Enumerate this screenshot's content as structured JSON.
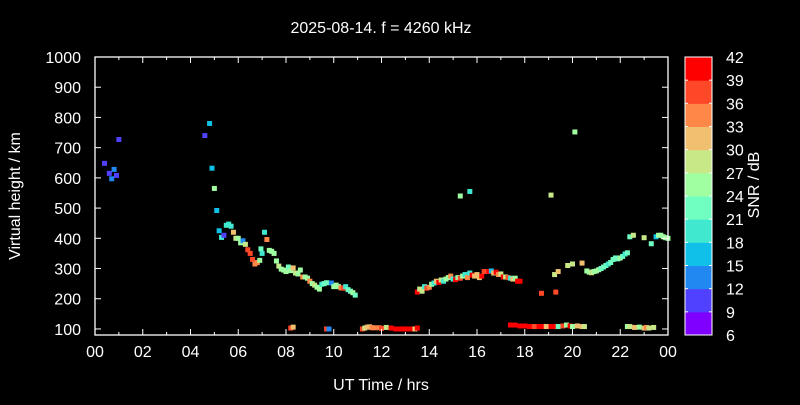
{
  "chart_data": {
    "type": "scatter",
    "title": "2025-08-14. f = 4260 kHz",
    "xlabel": "UT Time / hrs",
    "ylabel": "Virtual height / km",
    "xlim": [
      0,
      24
    ],
    "ylim": [
      80,
      1000
    ],
    "x_ticks": [
      "00",
      "02",
      "04",
      "06",
      "08",
      "10",
      "12",
      "14",
      "16",
      "18",
      "20",
      "22",
      "00"
    ],
    "y_ticks": [
      100,
      200,
      300,
      400,
      500,
      600,
      700,
      800,
      900,
      1000
    ],
    "grid": false,
    "colorbar": {
      "label": "SNR / dB",
      "ticks": [
        6,
        9,
        12,
        15,
        18,
        21,
        24,
        27,
        30,
        33,
        36,
        39,
        42
      ],
      "colors": [
        "#7f00ff",
        "#5040ff",
        "#2088f0",
        "#10c0e8",
        "#40e8d0",
        "#70ffc0",
        "#a0ffa0",
        "#c8e888",
        "#f0c070",
        "#ff8848",
        "#ff4828",
        "#ff0000"
      ],
      "placement": "right"
    },
    "points_columns": [
      "time_h",
      "height_km",
      "snr_db"
    ],
    "points": [
      [
        0.4,
        648,
        11
      ],
      [
        0.6,
        615,
        11
      ],
      [
        0.7,
        597,
        13
      ],
      [
        0.8,
        628,
        13
      ],
      [
        0.9,
        608,
        11
      ],
      [
        1.0,
        727,
        10
      ],
      [
        4.6,
        740,
        10
      ],
      [
        4.8,
        780,
        16
      ],
      [
        4.9,
        632,
        16
      ],
      [
        5.0,
        565,
        25
      ],
      [
        5.1,
        492,
        17
      ],
      [
        5.2,
        425,
        17
      ],
      [
        5.3,
        403,
        18
      ],
      [
        5.4,
        410,
        10
      ],
      [
        5.5,
        443,
        19
      ],
      [
        5.6,
        447,
        20
      ],
      [
        5.7,
        440,
        18
      ],
      [
        5.8,
        420,
        32
      ],
      [
        5.9,
        400,
        27
      ],
      [
        6.0,
        400,
        25
      ],
      [
        6.1,
        385,
        24
      ],
      [
        6.2,
        392,
        14
      ],
      [
        6.3,
        380,
        27
      ],
      [
        6.4,
        362,
        36
      ],
      [
        6.5,
        350,
        36
      ],
      [
        6.6,
        330,
        38
      ],
      [
        6.7,
        315,
        33
      ],
      [
        6.8,
        320,
        35
      ],
      [
        6.9,
        327,
        26
      ],
      [
        6.95,
        365,
        21
      ],
      [
        7.0,
        350,
        19
      ],
      [
        7.1,
        420,
        19
      ],
      [
        7.2,
        396,
        35
      ],
      [
        7.3,
        360,
        24
      ],
      [
        7.4,
        357,
        24
      ],
      [
        7.5,
        350,
        24
      ],
      [
        7.6,
        325,
        25
      ],
      [
        7.7,
        308,
        27
      ],
      [
        7.8,
        298,
        25
      ],
      [
        7.9,
        295,
        25
      ],
      [
        8.0,
        290,
        26
      ],
      [
        8.1,
        305,
        22
      ],
      [
        8.2,
        293,
        25
      ],
      [
        8.3,
        302,
        32
      ],
      [
        8.4,
        285,
        27
      ],
      [
        8.5,
        282,
        25
      ],
      [
        8.6,
        295,
        25
      ],
      [
        8.7,
        272,
        33
      ],
      [
        8.8,
        272,
        24
      ],
      [
        8.9,
        268,
        26
      ],
      [
        9.0,
        258,
        33
      ],
      [
        9.1,
        250,
        24
      ],
      [
        9.2,
        245,
        27
      ],
      [
        9.3,
        238,
        26
      ],
      [
        9.4,
        232,
        25
      ],
      [
        9.5,
        248,
        20
      ],
      [
        9.6,
        250,
        21
      ],
      [
        9.7,
        253,
        21
      ],
      [
        9.9,
        252,
        14
      ],
      [
        10.0,
        240,
        24
      ],
      [
        10.1,
        245,
        25
      ],
      [
        10.2,
        240,
        26
      ],
      [
        10.3,
        236,
        33
      ],
      [
        10.4,
        235,
        36
      ],
      [
        10.5,
        240,
        19
      ],
      [
        10.6,
        230,
        21
      ],
      [
        10.7,
        225,
        23
      ],
      [
        10.8,
        220,
        24
      ],
      [
        10.9,
        212,
        22
      ],
      [
        8.2,
        103,
        37
      ],
      [
        8.3,
        106,
        32
      ],
      [
        9.7,
        100,
        36
      ],
      [
        9.8,
        100,
        14
      ],
      [
        11.2,
        100,
        38
      ],
      [
        11.3,
        103,
        27
      ],
      [
        11.4,
        106,
        30
      ],
      [
        11.5,
        107,
        32
      ],
      [
        11.6,
        104,
        35
      ],
      [
        11.7,
        104,
        35
      ],
      [
        11.9,
        104,
        33
      ],
      [
        12.0,
        102,
        36
      ],
      [
        12.2,
        105,
        29
      ],
      [
        12.4,
        103,
        39
      ],
      [
        12.6,
        100,
        40
      ],
      [
        12.8,
        100,
        41
      ],
      [
        13.0,
        100,
        40
      ],
      [
        13.2,
        100,
        41
      ],
      [
        13.4,
        100,
        30
      ],
      [
        13.5,
        103,
        40
      ],
      [
        13.5,
        222,
        40
      ],
      [
        13.6,
        232,
        27
      ],
      [
        13.7,
        225,
        29
      ],
      [
        13.8,
        240,
        19
      ],
      [
        13.9,
        235,
        37
      ],
      [
        14.0,
        238,
        33
      ],
      [
        14.1,
        248,
        24
      ],
      [
        14.2,
        252,
        19
      ],
      [
        14.3,
        258,
        32
      ],
      [
        14.4,
        254,
        40
      ],
      [
        14.5,
        262,
        27
      ],
      [
        14.6,
        258,
        19
      ],
      [
        14.7,
        265,
        26
      ],
      [
        14.8,
        270,
        24
      ],
      [
        14.9,
        275,
        34
      ],
      [
        15.0,
        265,
        20
      ],
      [
        15.1,
        263,
        39
      ],
      [
        15.2,
        270,
        26
      ],
      [
        15.3,
        268,
        38
      ],
      [
        15.4,
        275,
        24
      ],
      [
        15.5,
        280,
        19
      ],
      [
        15.6,
        270,
        33
      ],
      [
        15.7,
        285,
        18
      ],
      [
        15.8,
        278,
        40
      ],
      [
        15.9,
        275,
        32
      ],
      [
        16.0,
        280,
        31
      ],
      [
        16.1,
        270,
        31
      ],
      [
        16.2,
        275,
        40
      ],
      [
        16.3,
        290,
        36
      ],
      [
        16.5,
        290,
        39
      ],
      [
        16.6,
        292,
        17
      ],
      [
        16.7,
        285,
        32
      ],
      [
        16.8,
        288,
        39
      ],
      [
        16.9,
        280,
        35
      ],
      [
        17.0,
        282,
        27
      ],
      [
        17.1,
        272,
        40
      ],
      [
        17.2,
        272,
        27
      ],
      [
        17.3,
        270,
        38
      ],
      [
        17.4,
        268,
        20
      ],
      [
        17.5,
        265,
        32
      ],
      [
        17.6,
        268,
        24
      ],
      [
        15.3,
        540,
        25
      ],
      [
        15.7,
        555,
        19
      ],
      [
        17.7,
        258,
        40
      ],
      [
        17.8,
        258,
        39
      ],
      [
        18.7,
        218,
        38
      ],
      [
        19.3,
        222,
        37
      ],
      [
        17.4,
        113,
        40
      ],
      [
        17.6,
        113,
        39
      ],
      [
        17.8,
        110,
        40
      ],
      [
        18.0,
        110,
        41
      ],
      [
        18.2,
        108,
        40
      ],
      [
        18.4,
        108,
        36
      ],
      [
        18.6,
        108,
        40
      ],
      [
        18.8,
        108,
        39
      ],
      [
        18.9,
        108,
        30
      ],
      [
        19.1,
        108,
        40
      ],
      [
        19.3,
        108,
        39
      ],
      [
        19.4,
        108,
        21
      ],
      [
        19.6,
        110,
        36
      ],
      [
        19.75,
        113,
        24
      ],
      [
        19.9,
        110,
        40
      ],
      [
        20.0,
        108,
        24
      ],
      [
        20.2,
        110,
        32
      ],
      [
        20.4,
        108,
        32
      ],
      [
        20.5,
        108,
        27
      ],
      [
        19.1,
        543,
        27
      ],
      [
        20.1,
        752,
        25
      ],
      [
        19.25,
        280,
        27
      ],
      [
        19.4,
        290,
        32
      ],
      [
        19.8,
        310,
        27
      ],
      [
        20.0,
        315,
        27
      ],
      [
        20.4,
        318,
        32
      ],
      [
        20.6,
        292,
        26
      ],
      [
        20.7,
        288,
        26
      ],
      [
        20.8,
        286,
        27
      ],
      [
        20.9,
        290,
        25
      ],
      [
        21.0,
        292,
        24
      ],
      [
        21.1,
        296,
        25
      ],
      [
        21.2,
        300,
        23
      ],
      [
        21.3,
        305,
        22
      ],
      [
        21.4,
        310,
        21
      ],
      [
        21.5,
        315,
        20
      ],
      [
        21.6,
        320,
        22
      ],
      [
        21.7,
        330,
        21
      ],
      [
        21.8,
        335,
        23
      ],
      [
        21.9,
        332,
        23
      ],
      [
        22.0,
        335,
        24
      ],
      [
        22.1,
        340,
        22
      ],
      [
        22.2,
        348,
        19
      ],
      [
        22.3,
        352,
        22
      ],
      [
        22.4,
        405,
        22
      ],
      [
        22.55,
        410,
        27
      ],
      [
        23.0,
        402,
        27
      ],
      [
        23.3,
        382,
        22
      ],
      [
        23.5,
        405,
        17
      ],
      [
        23.6,
        410,
        26
      ],
      [
        23.7,
        410,
        24
      ],
      [
        23.8,
        405,
        25
      ],
      [
        23.9,
        402,
        25
      ],
      [
        24.0,
        400,
        24
      ],
      [
        22.3,
        108,
        24
      ],
      [
        22.4,
        108,
        27
      ],
      [
        22.6,
        105,
        31
      ],
      [
        22.8,
        106,
        24
      ],
      [
        23.0,
        103,
        31
      ],
      [
        23.1,
        105,
        33
      ],
      [
        23.2,
        103,
        27
      ],
      [
        23.4,
        105,
        27
      ]
    ]
  }
}
